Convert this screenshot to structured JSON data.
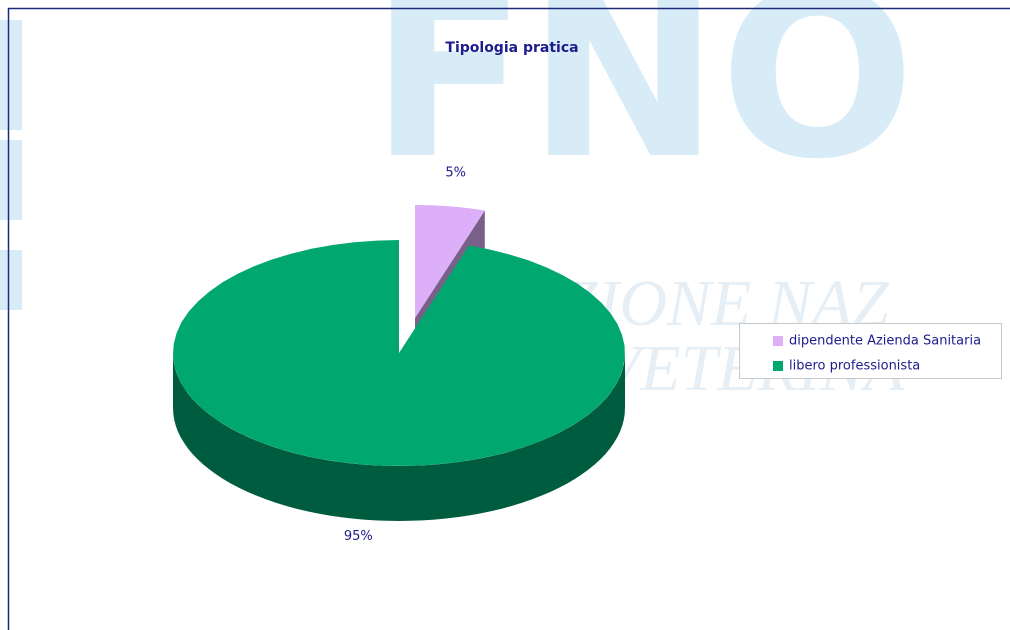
{
  "watermark": [
    "FNO",
    "RAZIONE NAZ",
    "VETERINA"
  ],
  "chart_data": {
    "type": "pie",
    "title": "Tipologia pratica",
    "categories": [
      "dipendente Azienda Sanitaria",
      "libero professionista"
    ],
    "values": [
      5,
      95
    ],
    "value_labels": [
      "5%",
      "95%"
    ],
    "colors": [
      "#dcaff8",
      "#00a870"
    ],
    "explode": [
      true,
      false
    ],
    "legend": "right"
  }
}
